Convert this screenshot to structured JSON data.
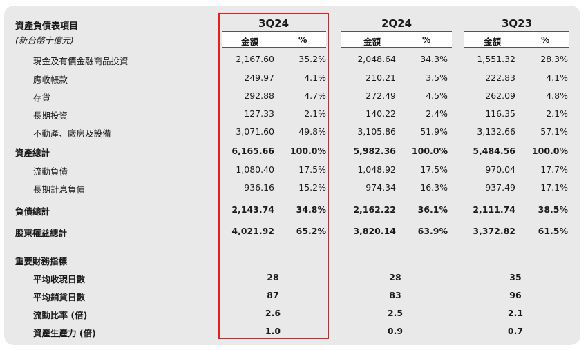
{
  "header": {
    "title": "資產負債表項目",
    "subtitle": "(新台幣十億元)",
    "periods": [
      "3Q24",
      "2Q24",
      "3Q23"
    ],
    "amount_label": "金額",
    "pct_label": "%"
  },
  "rows": [
    {
      "label": "現金及有價金融商品投資",
      "bold": false,
      "indent": true,
      "vals": [
        "2,167.60",
        "35.2%",
        "2,048.64",
        "34.3%",
        "1,551.32",
        "28.3%"
      ]
    },
    {
      "label": "應收帳款",
      "bold": false,
      "indent": true,
      "vals": [
        "249.97",
        "4.1%",
        "210.21",
        "3.5%",
        "222.83",
        "4.1%"
      ]
    },
    {
      "label": "存貨",
      "bold": false,
      "indent": true,
      "vals": [
        "292.88",
        "4.7%",
        "272.49",
        "4.5%",
        "262.09",
        "4.8%"
      ]
    },
    {
      "label": "長期投資",
      "bold": false,
      "indent": true,
      "vals": [
        "127.33",
        "2.1%",
        "140.22",
        "2.4%",
        "116.35",
        "2.1%"
      ]
    },
    {
      "label": "不動產、廠房及設備",
      "bold": false,
      "indent": true,
      "vals": [
        "3,071.60",
        "49.8%",
        "3,105.86",
        "51.9%",
        "3,132.66",
        "57.1%"
      ]
    },
    {
      "label": "資產總計",
      "bold": true,
      "indent": false,
      "vals": [
        "6,165.66",
        "100.0%",
        "5,982.36",
        "100.0%",
        "5,484.56",
        "100.0%"
      ]
    },
    {
      "label": "流動負債",
      "bold": false,
      "indent": true,
      "vals": [
        "1,080.40",
        "17.5%",
        "1,048.92",
        "17.5%",
        "970.04",
        "17.7%"
      ]
    },
    {
      "label": "長期計息負債",
      "bold": false,
      "indent": true,
      "vals": [
        "936.16",
        "15.2%",
        "974.34",
        "16.3%",
        "937.49",
        "17.1%"
      ]
    },
    {
      "label": "負債總計",
      "bold": true,
      "indent": false,
      "vals": [
        "2,143.74",
        "34.8%",
        "2,162.22",
        "36.1%",
        "2,111.74",
        "38.5%"
      ]
    },
    {
      "label": "股東權益總計",
      "bold": true,
      "indent": false,
      "vals": [
        "4,021.92",
        "65.2%",
        "3,820.14",
        "63.9%",
        "3,372.82",
        "61.5%"
      ]
    }
  ],
  "indicators": {
    "title": "重要財務指標",
    "rows": [
      {
        "label": "平均收現日數",
        "vals": [
          "28",
          "28",
          "35"
        ]
      },
      {
        "label": "平均銷貨日數",
        "vals": [
          "87",
          "83",
          "96"
        ]
      },
      {
        "label": "流動比率 (倍)",
        "vals": [
          "2.6",
          "2.5",
          "2.1"
        ]
      },
      {
        "label": "資產生產力 (倍)",
        "vals": [
          "1.0",
          "0.9",
          "0.7"
        ]
      }
    ]
  },
  "highlight_color": "#e02020"
}
